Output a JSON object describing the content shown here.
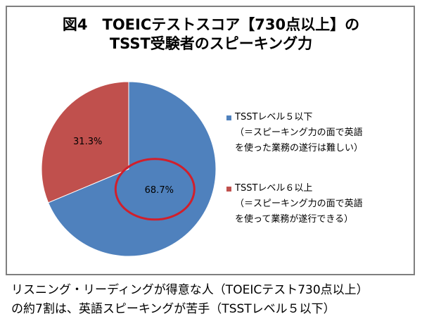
{
  "colors": {
    "level5_or_below": "#4f81bd",
    "level6_or_above": "#c0504d",
    "highlight_circle": "#d11f2b",
    "frame_border": "#7f7f7f"
  },
  "chart_data": {
    "type": "pie",
    "title": "図4　TOEICテストスコア【730点以上】の TSST受験者のスピーキング力",
    "title_lines": [
      "図4　TOEICテストスコア【730点以上】の",
      "TSST受験者のスピーキング力"
    ],
    "categories": [
      "TSSTレベル５以下",
      "TSSTレベル６以上"
    ],
    "values": [
      68.7,
      31.3
    ],
    "data_labels": [
      "68.7%",
      "31.3%"
    ],
    "legend": [
      {
        "name": "TSSTレベル５以下",
        "desc_lines": [
          "（＝スピーキング力の面で英語",
          "を使った業務の遂行は難しい）"
        ]
      },
      {
        "name": "TSSTレベル６以上",
        "desc_lines": [
          "（＝スピーキング力の面で英語",
          "を使って業務が遂行できる）"
        ]
      }
    ],
    "legend_position": "right",
    "highlight": "68.7%"
  },
  "caption_lines": [
    "リスニング・リーディングが得意な人（TOEICテスト730点以上）",
    "の約7割は、英語スピーキングが苦手（TSSTレベル５以下）"
  ]
}
